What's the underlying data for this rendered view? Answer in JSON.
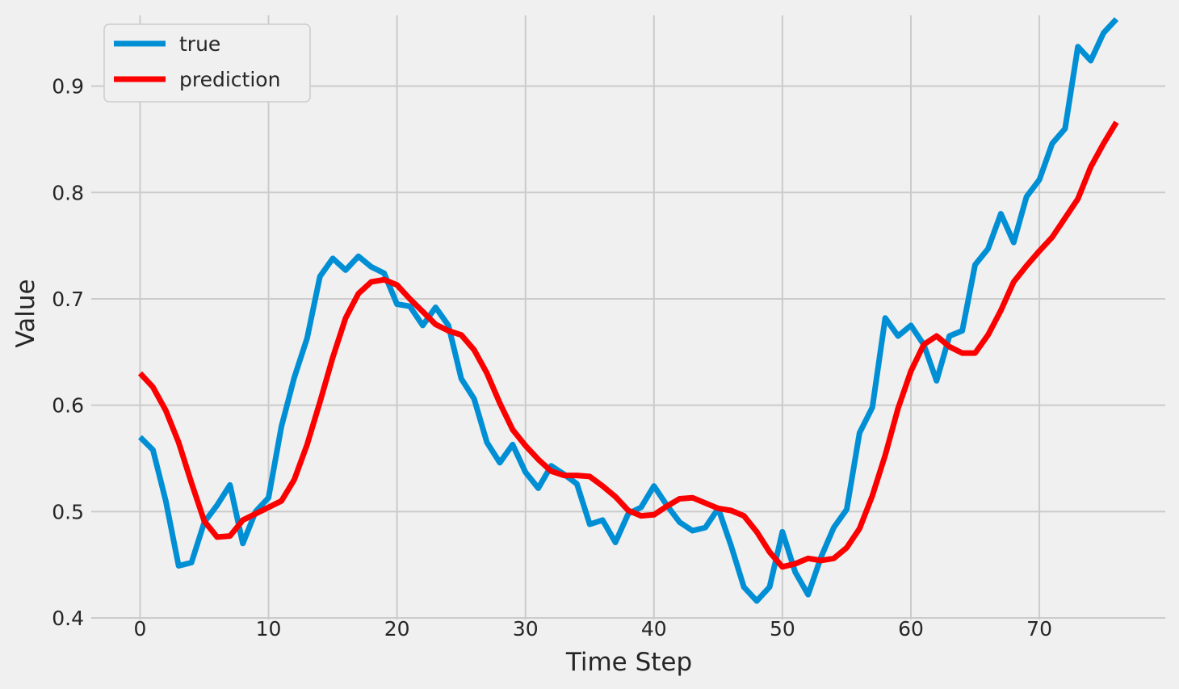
{
  "chart_data": {
    "type": "line",
    "title": "",
    "xlabel": "Time Step",
    "ylabel": "Value",
    "xlim": [
      -3.8,
      79.8
    ],
    "ylim": [
      0.3985,
      0.9665
    ],
    "x_ticks": [
      0,
      10,
      20,
      30,
      40,
      50,
      60,
      70
    ],
    "y_ticks": [
      0.4,
      0.5,
      0.6,
      0.7,
      0.8,
      0.9
    ],
    "grid": true,
    "legend_position": "top-left",
    "x": [
      0,
      1,
      2,
      3,
      4,
      5,
      6,
      7,
      8,
      9,
      10,
      11,
      12,
      13,
      14,
      15,
      16,
      17,
      18,
      19,
      20,
      21,
      22,
      23,
      24,
      25,
      26,
      27,
      28,
      29,
      30,
      31,
      32,
      33,
      34,
      35,
      36,
      37,
      38,
      39,
      40,
      41,
      42,
      43,
      44,
      45,
      46,
      47,
      48,
      49,
      50,
      51,
      52,
      53,
      54,
      55,
      56,
      57,
      58,
      59,
      60,
      61,
      62,
      63,
      64,
      65,
      66,
      67,
      68,
      69,
      70,
      71,
      72,
      73,
      74,
      75,
      76
    ],
    "series": [
      {
        "name": "true",
        "color": "#008fd5",
        "values": [
          0.57,
          0.558,
          0.51,
          0.449,
          0.452,
          0.49,
          0.506,
          0.525,
          0.47,
          0.5,
          0.513,
          0.58,
          0.626,
          0.663,
          0.721,
          0.738,
          0.727,
          0.74,
          0.73,
          0.724,
          0.695,
          0.693,
          0.675,
          0.692,
          0.675,
          0.625,
          0.606,
          0.565,
          0.546,
          0.563,
          0.537,
          0.522,
          0.543,
          0.535,
          0.526,
          0.488,
          0.492,
          0.471,
          0.498,
          0.504,
          0.524,
          0.506,
          0.49,
          0.482,
          0.485,
          0.503,
          0.468,
          0.429,
          0.416,
          0.429,
          0.481,
          0.443,
          0.422,
          0.457,
          0.485,
          0.502,
          0.574,
          0.598,
          0.682,
          0.665,
          0.675,
          0.657,
          0.623,
          0.665,
          0.67,
          0.732,
          0.747,
          0.78,
          0.753,
          0.796,
          0.812,
          0.846,
          0.86,
          0.937,
          0.924,
          0.95,
          0.963
        ]
      },
      {
        "name": "prediction",
        "color": "#fc0000",
        "values": [
          0.63,
          0.617,
          0.595,
          0.565,
          0.527,
          0.491,
          0.476,
          0.477,
          0.492,
          0.498,
          0.504,
          0.51,
          0.53,
          0.563,
          0.603,
          0.645,
          0.682,
          0.705,
          0.716,
          0.718,
          0.713,
          0.7,
          0.688,
          0.676,
          0.67,
          0.666,
          0.652,
          0.63,
          0.602,
          0.577,
          0.562,
          0.549,
          0.538,
          0.534,
          0.534,
          0.533,
          0.524,
          0.514,
          0.501,
          0.496,
          0.497,
          0.505,
          0.512,
          0.513,
          0.508,
          0.503,
          0.501,
          0.496,
          0.481,
          0.462,
          0.448,
          0.451,
          0.456,
          0.454,
          0.456,
          0.466,
          0.484,
          0.515,
          0.553,
          0.597,
          0.632,
          0.657,
          0.665,
          0.655,
          0.649,
          0.649,
          0.666,
          0.689,
          0.716,
          0.731,
          0.745,
          0.758,
          0.776,
          0.794,
          0.824,
          0.846,
          0.866
        ]
      }
    ]
  }
}
